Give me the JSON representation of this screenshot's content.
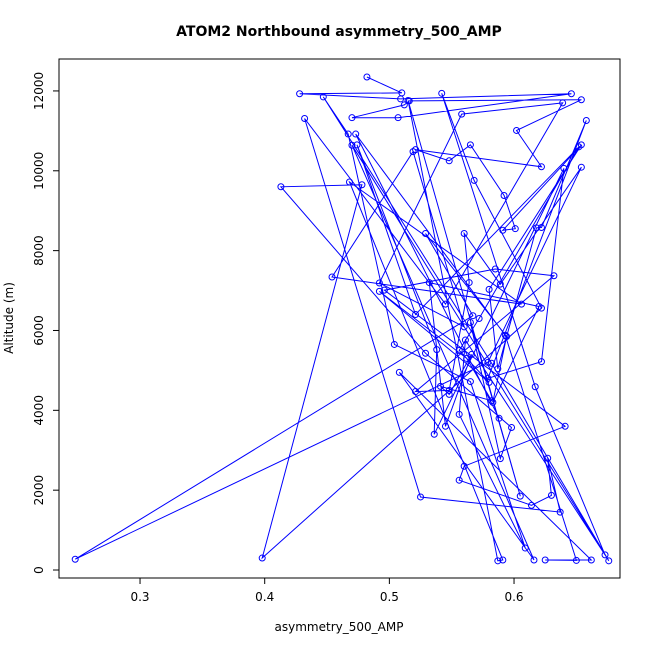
{
  "chart_data": {
    "type": "scatter",
    "title": "ATOM2 Northbound asymmetry_500_AMP",
    "xlabel": "asymmetry_500_AMP",
    "ylabel": "Altitude (m)",
    "xlim": [
      0.235,
      0.685
    ],
    "ylim": [
      -200,
      12800
    ],
    "xticks": [
      0.3,
      0.4,
      0.5,
      0.6
    ],
    "xtick_labels": [
      "0.3",
      "0.4",
      "0.5",
      "0.6"
    ],
    "yticks": [
      0,
      2000,
      4000,
      6000,
      8000,
      10000,
      12000
    ],
    "ytick_labels": [
      "0",
      "2000",
      "4000",
      "6000",
      "8000",
      "10000",
      "12000"
    ],
    "grid": false,
    "connect_points": true,
    "marker": "open-circle",
    "color": "#0000ff",
    "series": [
      {
        "x": [
          0.482,
          0.51,
          0.428,
          0.509,
          0.646,
          0.507,
          0.47,
          0.512,
          0.516,
          0.654,
          0.602,
          0.622,
          0.521,
          0.548,
          0.565,
          0.592,
          0.601,
          0.591,
          0.654,
          0.58,
          0.587,
          0.618,
          0.622,
          0.658,
          0.579,
          0.622,
          0.64,
          0.536,
          0.538,
          0.474,
          0.521,
          0.652,
          0.572,
          0.556,
          0.58,
          0.492,
          0.562,
          0.582,
          0.541,
          0.548,
          0.566,
          0.545,
          0.532,
          0.62,
          0.583,
          0.594,
          0.529,
          0.567,
          0.248,
          0.579,
          0.654,
          0.589,
          0.56,
          0.564,
          0.548,
          0.521,
          0.632,
          0.585,
          0.496,
          0.641,
          0.56,
          0.556,
          0.614,
          0.63,
          0.627,
          0.637,
          0.525,
          0.432,
          0.545,
          0.639,
          0.558,
          0.492,
          0.56,
          0.519,
          0.454,
          0.606,
          0.468,
          0.591,
          0.587,
          0.515,
          0.605,
          0.565,
          0.589,
          0.598,
          0.529,
          0.413,
          0.478,
          0.398,
          0.622,
          0.568,
          0.542,
          0.617,
          0.673,
          0.561,
          0.556,
          0.609,
          0.565,
          0.504,
          0.467,
          0.447,
          0.582,
          0.676,
          0.47,
          0.616,
          0.508,
          0.662,
          0.625,
          0.65,
          0.593,
          0.473,
          0.588
        ],
        "y": [
          12350,
          11950,
          11930,
          11800,
          11930,
          11330,
          11330,
          11650,
          11750,
          11780,
          11010,
          10100,
          10530,
          10250,
          10650,
          9380,
          8550,
          8510,
          10650,
          7030,
          5040,
          8570,
          8580,
          11260,
          4800,
          5220,
          10060,
          3400,
          5520,
          10650,
          6400,
          10600,
          6300,
          5500,
          4700,
          6980,
          5300,
          4240,
          4600,
          4400,
          5400,
          3600,
          7200,
          6600,
          4200,
          5850,
          8430,
          6370,
          270,
          5200,
          10090,
          7160,
          8430,
          7200,
          4500,
          4470,
          7370,
          7540,
          7010,
          3600,
          2600,
          2250,
          1620,
          1870,
          2800,
          1450,
          1830,
          11310,
          6660,
          11700,
          11420,
          7190,
          6090,
          10480,
          7340,
          6660,
          9720,
          250,
          230,
          11760,
          1850,
          6200,
          2790,
          3570,
          5430,
          9600,
          9650,
          300,
          6560,
          9760,
          11940,
          4590,
          380,
          5760,
          3900,
          550,
          4720,
          5650,
          10920,
          11850,
          5180,
          230,
          10640,
          250,
          4950,
          250,
          250,
          240,
          5880,
          10920,
          3800
        ]
      }
    ]
  }
}
